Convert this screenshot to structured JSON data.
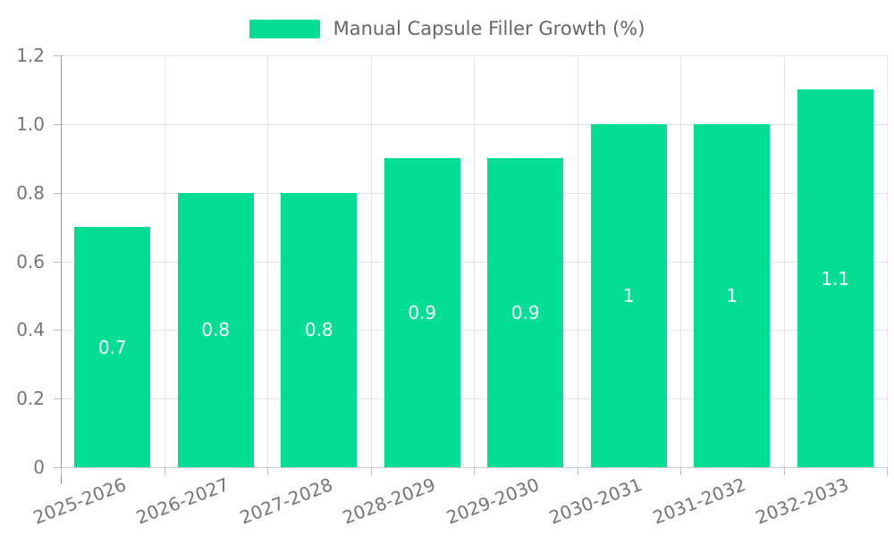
{
  "chart_data": {
    "type": "bar",
    "title": "Manual Capsule Filler Growth (%)",
    "categories": [
      "2025-2026",
      "2026-2027",
      "2027-2028",
      "2028-2029",
      "2029-2030",
      "2030-2031",
      "2031-2032",
      "2032-2033"
    ],
    "values": [
      0.7,
      0.8,
      0.8,
      0.9,
      0.9,
      1,
      1,
      1.1
    ],
    "value_labels": [
      "0.7",
      "0.8",
      "0.8",
      "0.9",
      "0.9",
      "1",
      "1",
      "1.1"
    ],
    "xlabel": "",
    "ylabel": "",
    "ylim": [
      0,
      1.2
    ],
    "yticks": [
      0,
      0.2,
      0.4,
      0.6,
      0.8,
      1.0,
      1.2
    ],
    "ytick_labels": [
      "0",
      "0.2",
      "0.4",
      "0.6",
      "0.8",
      "1.0",
      "1.2"
    ],
    "grid": true,
    "legend_position": "top"
  },
  "legend": {
    "label": "Manual Capsule Filler Growth (%)"
  },
  "colors": {
    "bar": "#03DE95",
    "value_label": "#ffffff",
    "axis_text": "#757575",
    "legend_text": "#666666",
    "gridline": "#e4e4e4",
    "baseline": "#cacaca",
    "axis_line": "#999999",
    "tick": "#bdbdbd",
    "background": "#ffffff"
  }
}
